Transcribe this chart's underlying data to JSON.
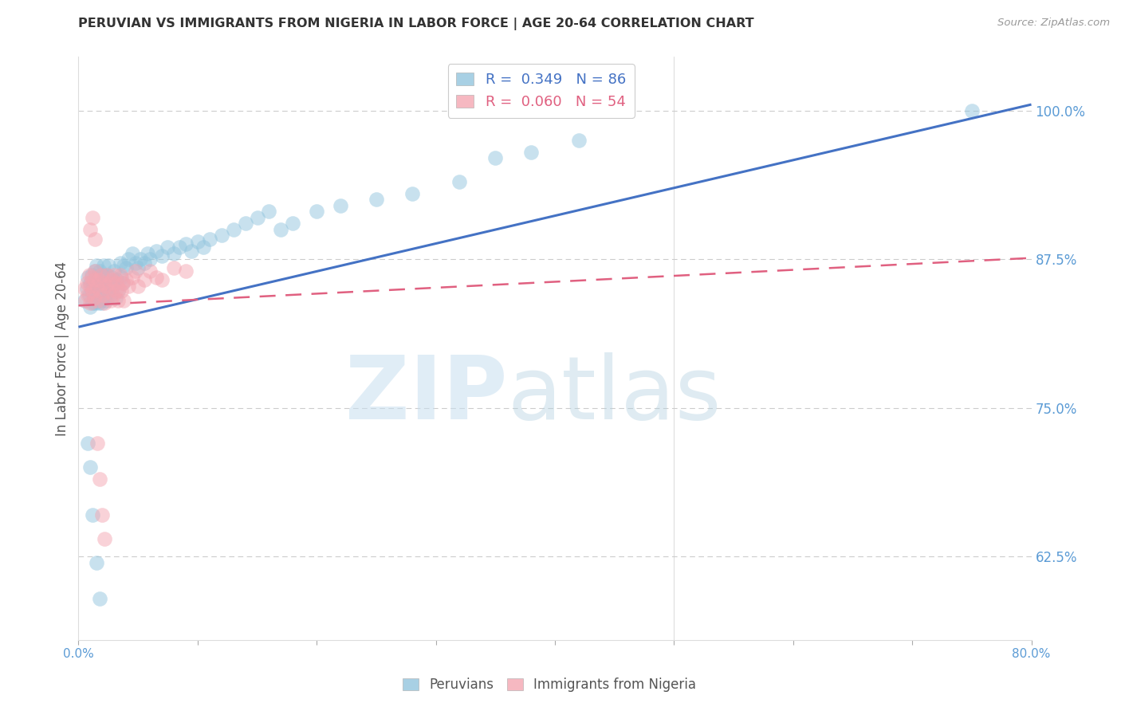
{
  "title": "PERUVIAN VS IMMIGRANTS FROM NIGERIA IN LABOR FORCE | AGE 20-64 CORRELATION CHART",
  "source": "Source: ZipAtlas.com",
  "ylabel": "In Labor Force | Age 20-64",
  "xlim": [
    0.0,
    0.8
  ],
  "ylim": [
    0.555,
    1.045
  ],
  "ytick_positions": [
    0.625,
    0.75,
    0.875,
    1.0
  ],
  "ytick_labels": [
    "62.5%",
    "75.0%",
    "87.5%",
    "100.0%"
  ],
  "blue_R": 0.349,
  "blue_N": 86,
  "pink_R": 0.06,
  "pink_N": 54,
  "blue_color": "#92c5de",
  "pink_color": "#f4a6b2",
  "blue_line_color": "#4472c4",
  "pink_line_color": "#e06080",
  "legend_label_blue": "Peruvians",
  "legend_label_pink": "Immigrants from Nigeria",
  "blue_line_x0": 0.0,
  "blue_line_y0": 0.818,
  "blue_line_x1": 0.8,
  "blue_line_y1": 1.005,
  "pink_line_x0": 0.0,
  "pink_line_y0": 0.836,
  "pink_line_x1": 0.8,
  "pink_line_y1": 0.876,
  "blue_scatter_x": [
    0.005,
    0.007,
    0.008,
    0.009,
    0.01,
    0.01,
    0.011,
    0.011,
    0.012,
    0.012,
    0.013,
    0.013,
    0.014,
    0.014,
    0.015,
    0.015,
    0.016,
    0.016,
    0.017,
    0.017,
    0.018,
    0.018,
    0.019,
    0.019,
    0.02,
    0.02,
    0.021,
    0.021,
    0.022,
    0.022,
    0.023,
    0.023,
    0.024,
    0.025,
    0.026,
    0.027,
    0.028,
    0.029,
    0.03,
    0.031,
    0.032,
    0.033,
    0.035,
    0.036,
    0.037,
    0.038,
    0.04,
    0.042,
    0.045,
    0.048,
    0.05,
    0.052,
    0.055,
    0.058,
    0.06,
    0.065,
    0.07,
    0.075,
    0.08,
    0.085,
    0.09,
    0.095,
    0.1,
    0.105,
    0.11,
    0.12,
    0.13,
    0.14,
    0.15,
    0.16,
    0.17,
    0.18,
    0.2,
    0.22,
    0.25,
    0.28,
    0.32,
    0.35,
    0.38,
    0.42,
    0.008,
    0.01,
    0.012,
    0.015,
    0.018,
    0.75
  ],
  "blue_scatter_y": [
    0.84,
    0.85,
    0.86,
    0.845,
    0.855,
    0.835,
    0.848,
    0.862,
    0.852,
    0.838,
    0.858,
    0.842,
    0.865,
    0.838,
    0.855,
    0.87,
    0.845,
    0.86,
    0.852,
    0.838,
    0.848,
    0.865,
    0.855,
    0.84,
    0.862,
    0.838,
    0.852,
    0.87,
    0.842,
    0.858,
    0.85,
    0.84,
    0.862,
    0.87,
    0.855,
    0.845,
    0.86,
    0.852,
    0.865,
    0.842,
    0.858,
    0.848,
    0.872,
    0.86,
    0.855,
    0.87,
    0.868,
    0.875,
    0.88,
    0.872,
    0.868,
    0.875,
    0.872,
    0.88,
    0.875,
    0.882,
    0.878,
    0.885,
    0.88,
    0.885,
    0.888,
    0.882,
    0.89,
    0.885,
    0.892,
    0.895,
    0.9,
    0.905,
    0.91,
    0.915,
    0.9,
    0.905,
    0.915,
    0.92,
    0.925,
    0.93,
    0.94,
    0.96,
    0.965,
    0.975,
    0.72,
    0.7,
    0.66,
    0.62,
    0.59,
    1.0
  ],
  "pink_scatter_x": [
    0.005,
    0.006,
    0.007,
    0.008,
    0.009,
    0.01,
    0.01,
    0.011,
    0.012,
    0.013,
    0.013,
    0.014,
    0.015,
    0.016,
    0.017,
    0.018,
    0.019,
    0.02,
    0.021,
    0.022,
    0.023,
    0.024,
    0.025,
    0.026,
    0.027,
    0.028,
    0.029,
    0.03,
    0.031,
    0.032,
    0.033,
    0.034,
    0.035,
    0.036,
    0.037,
    0.038,
    0.04,
    0.042,
    0.045,
    0.048,
    0.05,
    0.055,
    0.06,
    0.065,
    0.07,
    0.08,
    0.09,
    0.01,
    0.012,
    0.014,
    0.016,
    0.018,
    0.02,
    0.022
  ],
  "pink_scatter_y": [
    0.85,
    0.84,
    0.855,
    0.845,
    0.862,
    0.852,
    0.838,
    0.86,
    0.848,
    0.858,
    0.842,
    0.865,
    0.852,
    0.84,
    0.858,
    0.848,
    0.862,
    0.845,
    0.855,
    0.838,
    0.852,
    0.862,
    0.848,
    0.855,
    0.84,
    0.858,
    0.845,
    0.862,
    0.848,
    0.855,
    0.84,
    0.85,
    0.862,
    0.848,
    0.855,
    0.84,
    0.858,
    0.852,
    0.86,
    0.865,
    0.852,
    0.858,
    0.865,
    0.86,
    0.858,
    0.868,
    0.865,
    0.9,
    0.91,
    0.892,
    0.72,
    0.69,
    0.66,
    0.64
  ]
}
